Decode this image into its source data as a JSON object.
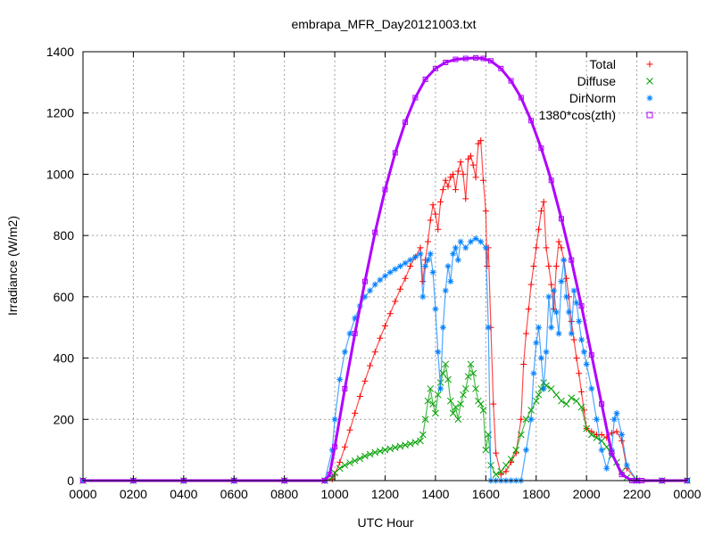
{
  "chart_data": {
    "type": "scatter",
    "title": "embrapa_MFR_Day20121003.txt",
    "xlabel": "UTC Hour",
    "ylabel": "Irradiance (W/m2)",
    "xlim": [
      0,
      24
    ],
    "ylim": [
      0,
      1400
    ],
    "x_tick_values": [
      0,
      2,
      4,
      6,
      8,
      10,
      12,
      14,
      16,
      18,
      20,
      22,
      24
    ],
    "x_tick_labels": [
      "0000",
      "0200",
      "0400",
      "0600",
      "0800",
      "1000",
      "1200",
      "1400",
      "1600",
      "1800",
      "2000",
      "2200",
      "0000"
    ],
    "y_ticks": [
      0,
      200,
      400,
      600,
      800,
      1000,
      1200,
      1400
    ],
    "grid": true,
    "legend_position": "top-right",
    "series": [
      {
        "name": "Total",
        "color": "#ff0000",
        "marker": "plus",
        "x": [
          0,
          2,
          4,
          6,
          8,
          9.6,
          9.9,
          10.0,
          10.2,
          10.4,
          10.6,
          10.8,
          11.0,
          11.2,
          11.4,
          11.6,
          11.8,
          12.0,
          12.2,
          12.4,
          12.6,
          12.8,
          13.0,
          13.2,
          13.4,
          13.5,
          13.6,
          13.7,
          13.8,
          13.9,
          14.0,
          14.1,
          14.2,
          14.3,
          14.4,
          14.5,
          14.6,
          14.7,
          14.8,
          14.9,
          15.0,
          15.1,
          15.2,
          15.3,
          15.4,
          15.5,
          15.6,
          15.7,
          15.8,
          15.9,
          16.0,
          16.05,
          16.1,
          16.2,
          16.3,
          16.4,
          16.6,
          16.8,
          17.0,
          17.2,
          17.4,
          17.5,
          17.6,
          17.7,
          17.8,
          17.9,
          18.0,
          18.1,
          18.2,
          18.3,
          18.4,
          18.5,
          18.6,
          18.7,
          18.8,
          18.9,
          19.0,
          19.1,
          19.2,
          19.3,
          19.4,
          19.5,
          19.6,
          19.7,
          19.8,
          19.9,
          20.0,
          20.2,
          20.4,
          20.6,
          20.8,
          21.0,
          21.2,
          21.4,
          21.6,
          22,
          23,
          24
        ],
        "y": [
          0,
          0,
          0,
          0,
          0,
          0,
          5,
          20,
          60,
          110,
          165,
          220,
          275,
          325,
          375,
          420,
          465,
          505,
          545,
          585,
          625,
          660,
          700,
          730,
          760,
          650,
          720,
          780,
          850,
          900,
          870,
          820,
          910,
          950,
          980,
          960,
          990,
          1000,
          950,
          1010,
          1040,
          1000,
          920,
          1050,
          1060,
          1030,
          990,
          1100,
          1110,
          980,
          880,
          700,
          760,
          500,
          250,
          90,
          20,
          30,
          60,
          90,
          200,
          380,
          480,
          560,
          640,
          700,
          760,
          820,
          880,
          910,
          760,
          700,
          640,
          560,
          700,
          780,
          760,
          720,
          660,
          600,
          520,
          460,
          400,
          350,
          290,
          230,
          170,
          160,
          150,
          150,
          140,
          155,
          160,
          130,
          40,
          0,
          0,
          0
        ]
      },
      {
        "name": "Diffuse",
        "color": "#00a000",
        "marker": "cross",
        "x": [
          0,
          2,
          4,
          6,
          8,
          9.6,
          9.9,
          10.0,
          10.2,
          10.4,
          10.6,
          10.8,
          11.0,
          11.2,
          11.4,
          11.6,
          11.8,
          12.0,
          12.2,
          12.4,
          12.6,
          12.8,
          13.0,
          13.2,
          13.4,
          13.5,
          13.6,
          13.7,
          13.8,
          13.9,
          14.0,
          14.1,
          14.2,
          14.3,
          14.4,
          14.5,
          14.6,
          14.7,
          14.8,
          14.9,
          15.0,
          15.1,
          15.2,
          15.3,
          15.4,
          15.5,
          15.6,
          15.7,
          15.8,
          15.9,
          16.0,
          16.1,
          16.2,
          16.4,
          16.6,
          16.8,
          17.0,
          17.2,
          17.4,
          17.6,
          17.8,
          18.0,
          18.1,
          18.2,
          18.3,
          18.4,
          18.6,
          18.8,
          19.0,
          19.2,
          19.4,
          19.6,
          19.8,
          20.0,
          20.2,
          20.4,
          20.6,
          20.8,
          21.0,
          21.2,
          21.4,
          21.6,
          22,
          23,
          24
        ],
        "y": [
          0,
          0,
          0,
          0,
          0,
          0,
          10,
          25,
          40,
          50,
          58,
          65,
          72,
          80,
          86,
          92,
          96,
          100,
          104,
          108,
          112,
          116,
          120,
          125,
          130,
          150,
          200,
          260,
          300,
          250,
          220,
          280,
          320,
          350,
          380,
          330,
          260,
          220,
          240,
          200,
          250,
          280,
          300,
          340,
          380,
          350,
          300,
          260,
          250,
          230,
          100,
          150,
          50,
          20,
          30,
          50,
          70,
          100,
          150,
          200,
          230,
          260,
          280,
          300,
          320,
          310,
          300,
          280,
          260,
          250,
          270,
          260,
          240,
          170,
          150,
          140,
          130,
          110,
          80,
          60,
          30,
          10,
          0,
          0,
          0
        ]
      },
      {
        "name": "DirNorm",
        "color": "#0080ff",
        "marker": "asterisk",
        "x": [
          0,
          2,
          4,
          6,
          8,
          9.6,
          9.9,
          10.0,
          10.2,
          10.4,
          10.6,
          10.8,
          11.0,
          11.2,
          11.4,
          11.6,
          11.8,
          12.0,
          12.2,
          12.4,
          12.6,
          12.8,
          13.0,
          13.2,
          13.4,
          13.5,
          13.6,
          13.7,
          13.8,
          13.9,
          14.0,
          14.1,
          14.2,
          14.3,
          14.4,
          14.5,
          14.6,
          14.7,
          14.8,
          14.9,
          15.0,
          15.2,
          15.4,
          15.6,
          15.8,
          16.0,
          16.1,
          16.2,
          16.4,
          16.6,
          16.8,
          17.0,
          17.2,
          17.4,
          17.6,
          17.8,
          17.9,
          18.0,
          18.1,
          18.2,
          18.3,
          18.4,
          18.5,
          18.6,
          18.7,
          18.8,
          18.9,
          19.0,
          19.1,
          19.2,
          19.3,
          19.4,
          19.5,
          19.6,
          19.7,
          19.8,
          19.9,
          20.0,
          20.2,
          20.4,
          20.6,
          20.8,
          21.0,
          21.1,
          21.2,
          21.4,
          21.6,
          22,
          23,
          24
        ],
        "y": [
          0,
          0,
          0,
          0,
          0,
          0,
          100,
          200,
          330,
          420,
          480,
          530,
          570,
          600,
          620,
          640,
          655,
          668,
          680,
          690,
          700,
          710,
          720,
          730,
          740,
          600,
          700,
          720,
          740,
          680,
          560,
          420,
          300,
          500,
          620,
          700,
          650,
          740,
          760,
          720,
          780,
          760,
          780,
          790,
          780,
          760,
          500,
          0,
          0,
          0,
          0,
          0,
          0,
          0,
          100,
          200,
          350,
          450,
          500,
          400,
          300,
          420,
          600,
          500,
          620,
          550,
          480,
          650,
          720,
          600,
          550,
          480,
          620,
          580,
          520,
          460,
          420,
          380,
          300,
          200,
          100,
          40,
          100,
          200,
          220,
          150,
          50,
          0,
          0,
          0
        ]
      },
      {
        "name": "1380*cos(zth)",
        "color": "#b000ff",
        "marker": "square",
        "x": [
          0,
          2,
          4,
          6,
          8,
          9.6,
          9.8,
          10.0,
          10.4,
          10.8,
          11.2,
          11.6,
          12.0,
          12.4,
          12.8,
          13.2,
          13.6,
          14.0,
          14.4,
          14.8,
          15.2,
          15.6,
          15.9,
          16.2,
          16.6,
          17.0,
          17.4,
          17.8,
          18.2,
          18.6,
          19.0,
          19.4,
          19.8,
          20.2,
          20.6,
          21.0,
          21.4,
          21.8,
          22.0,
          22.2,
          23,
          24
        ],
        "y": [
          0,
          0,
          0,
          0,
          0,
          0,
          20,
          110,
          300,
          480,
          650,
          810,
          950,
          1070,
          1170,
          1250,
          1310,
          1345,
          1365,
          1375,
          1378,
          1380,
          1378,
          1370,
          1345,
          1305,
          1250,
          1175,
          1085,
          980,
          855,
          720,
          570,
          410,
          250,
          90,
          20,
          0,
          0,
          0,
          0,
          0
        ]
      }
    ]
  }
}
